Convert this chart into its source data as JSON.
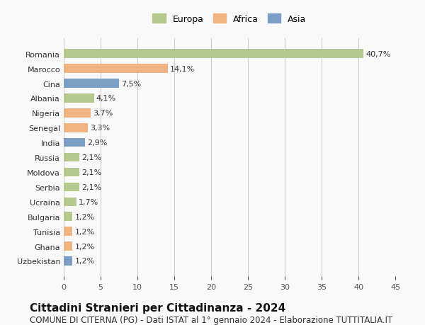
{
  "countries": [
    "Romania",
    "Marocco",
    "Cina",
    "Albania",
    "Nigeria",
    "Senegal",
    "India",
    "Russia",
    "Moldova",
    "Serbia",
    "Ucraina",
    "Bulgaria",
    "Tunisia",
    "Ghana",
    "Uzbekistan"
  ],
  "values": [
    40.7,
    14.1,
    7.5,
    4.1,
    3.7,
    3.3,
    2.9,
    2.1,
    2.1,
    2.1,
    1.7,
    1.2,
    1.2,
    1.2,
    1.2
  ],
  "labels": [
    "40,7%",
    "14,1%",
    "7,5%",
    "4,1%",
    "3,7%",
    "3,3%",
    "2,9%",
    "2,1%",
    "2,1%",
    "2,1%",
    "1,7%",
    "1,2%",
    "1,2%",
    "1,2%",
    "1,2%"
  ],
  "continents": [
    "Europa",
    "Africa",
    "Asia",
    "Europa",
    "Africa",
    "Africa",
    "Asia",
    "Europa",
    "Europa",
    "Europa",
    "Europa",
    "Europa",
    "Africa",
    "Africa",
    "Asia"
  ],
  "colors": {
    "Europa": "#b5c98e",
    "Africa": "#f0b482",
    "Asia": "#7b9fc4"
  },
  "legend_labels": [
    "Europa",
    "Africa",
    "Asia"
  ],
  "title": "Cittadini Stranieri per Cittadinanza - 2024",
  "subtitle": "COMUNE DI CITERNA (PG) - Dati ISTAT al 1° gennaio 2024 - Elaborazione TUTTITALIA.IT",
  "xlim": [
    0,
    45
  ],
  "xticks": [
    0,
    5,
    10,
    15,
    20,
    25,
    30,
    35,
    40,
    45
  ],
  "background_color": "#f9f9f9",
  "grid_color": "#cccccc",
  "bar_height": 0.6,
  "title_fontsize": 11,
  "subtitle_fontsize": 8.5,
  "label_fontsize": 8,
  "tick_fontsize": 8,
  "legend_fontsize": 9
}
